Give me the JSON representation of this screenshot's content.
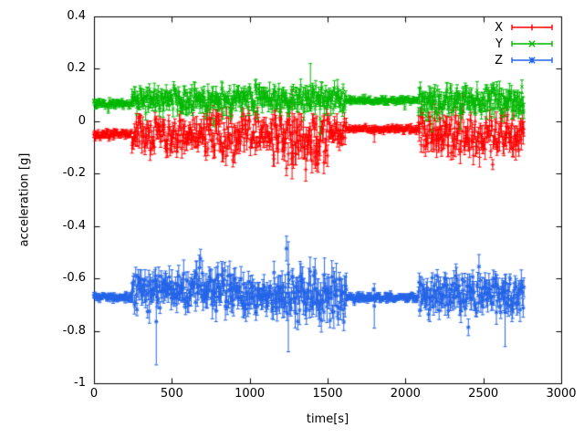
{
  "figure": {
    "background": "#ffffff"
  },
  "chart_data": {
    "type": "scatter",
    "title": "",
    "xlabel": "time[s]",
    "ylabel": "acceleration [g]",
    "xlim": [
      0,
      3000
    ],
    "ylim": [
      -1,
      0.4
    ],
    "xticks": [
      "0",
      "500",
      "1000",
      "1500",
      "2000",
      "2500",
      "3000"
    ],
    "yticks": [
      "0.4",
      "0.2",
      "0",
      "-0.2",
      "-0.4",
      "-0.6",
      "-0.8",
      "-1"
    ],
    "grid": false,
    "legend_position": "top-right",
    "marker_style": "points-with-errorbars",
    "x_range_of_data": [
      0,
      2760
    ],
    "series": [
      {
        "name": "X",
        "color": "#ff0000",
        "marker": "plus",
        "segments": [
          {
            "x0": 0,
            "x1": 240,
            "mean": -0.05,
            "noise": 0.01,
            "ebar": 0.008
          },
          {
            "x0": 240,
            "x1": 700,
            "mean": -0.05,
            "noise": 0.04,
            "ebar": 0.025
          },
          {
            "x0": 700,
            "x1": 950,
            "mean": -0.06,
            "noise": 0.055,
            "ebar": 0.03
          },
          {
            "x0": 950,
            "x1": 1150,
            "mean": -0.04,
            "noise": 0.04,
            "ebar": 0.025
          },
          {
            "x0": 1150,
            "x1": 1500,
            "mean": -0.07,
            "noise": 0.06,
            "ebar": 0.035
          },
          {
            "x0": 1500,
            "x1": 1620,
            "mean": -0.045,
            "noise": 0.035,
            "ebar": 0.02
          },
          {
            "x0": 1620,
            "x1": 2080,
            "mean": -0.03,
            "noise": 0.007,
            "ebar": 0.007
          },
          {
            "x0": 2080,
            "x1": 2760,
            "mean": -0.05,
            "noise": 0.045,
            "ebar": 0.028
          }
        ],
        "spikes": [
          {
            "x": 1272,
            "low": -0.22,
            "high": 0.12
          },
          {
            "x": 1430,
            "low": -0.19,
            "high": 0.02
          },
          {
            "x": 1800,
            "low": -0.08,
            "high": -0.02
          }
        ]
      },
      {
        "name": "Y",
        "color": "#00b800",
        "marker": "cross",
        "segments": [
          {
            "x0": 0,
            "x1": 240,
            "mean": 0.068,
            "noise": 0.008,
            "ebar": 0.008
          },
          {
            "x0": 240,
            "x1": 1620,
            "mean": 0.085,
            "noise": 0.028,
            "ebar": 0.02
          },
          {
            "x0": 1620,
            "x1": 2080,
            "mean": 0.08,
            "noise": 0.007,
            "ebar": 0.007
          },
          {
            "x0": 2080,
            "x1": 2760,
            "mean": 0.08,
            "noise": 0.032,
            "ebar": 0.022
          }
        ],
        "spikes": [
          {
            "x": 1390,
            "low": 0.05,
            "high": 0.22
          },
          {
            "x": 1452,
            "low": -0.05,
            "high": 0.07
          },
          {
            "x": 2172,
            "low": -0.04,
            "high": 0.08
          },
          {
            "x": 2352,
            "low": -0.03,
            "high": 0.08
          }
        ]
      },
      {
        "name": "Z",
        "color": "#2565e8",
        "marker": "star",
        "segments": [
          {
            "x0": 0,
            "x1": 240,
            "mean": -0.672,
            "noise": 0.007,
            "ebar": 0.007
          },
          {
            "x0": 240,
            "x1": 520,
            "mean": -0.66,
            "noise": 0.04,
            "ebar": 0.03
          },
          {
            "x0": 520,
            "x1": 900,
            "mean": -0.645,
            "noise": 0.045,
            "ebar": 0.035
          },
          {
            "x0": 900,
            "x1": 1150,
            "mean": -0.66,
            "noise": 0.04,
            "ebar": 0.03
          },
          {
            "x0": 1150,
            "x1": 1620,
            "mean": -0.67,
            "noise": 0.055,
            "ebar": 0.04
          },
          {
            "x0": 1620,
            "x1": 2080,
            "mean": -0.672,
            "noise": 0.008,
            "ebar": 0.007
          },
          {
            "x0": 2080,
            "x1": 2760,
            "mean": -0.66,
            "noise": 0.042,
            "ebar": 0.03
          }
        ],
        "spikes": [
          {
            "x": 400,
            "low": -0.93,
            "high": -0.6
          },
          {
            "x": 1248,
            "low": -0.88,
            "high": -0.46
          },
          {
            "x": 1800,
            "low": -0.79,
            "high": -0.62
          },
          {
            "x": 2640,
            "low": -0.86,
            "high": -0.6
          }
        ]
      }
    ]
  }
}
